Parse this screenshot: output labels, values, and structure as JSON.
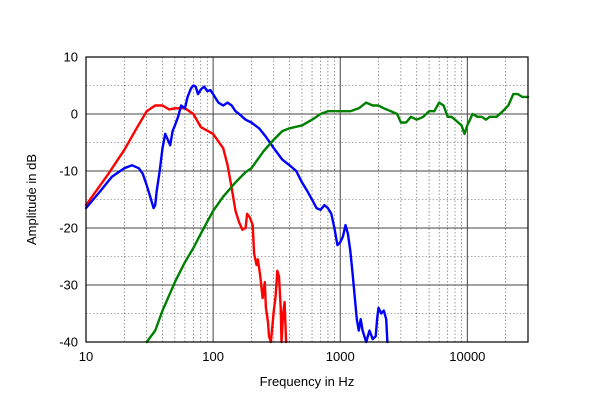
{
  "chart_data": {
    "type": "line",
    "title": "",
    "xlabel": "Frequency in Hz",
    "ylabel": "Amplitude in dB",
    "x_scale": "log",
    "xlim": [
      10,
      30000
    ],
    "ylim": [
      -40,
      10
    ],
    "x_ticks": [
      10,
      100,
      1000,
      10000
    ],
    "x_tick_labels": [
      "10",
      "100",
      "1000",
      "10000"
    ],
    "y_ticks": [
      10,
      0,
      -10,
      -20,
      -30,
      -40
    ],
    "y_tick_labels": [
      "10",
      "0",
      "-10",
      "-20",
      "-30",
      "-40"
    ],
    "grid": true,
    "legend": "none",
    "series": [
      {
        "color": "#ff0000",
        "points": [
          [
            10,
            -16.0
          ],
          [
            15,
            -10.5
          ],
          [
            20,
            -6.3
          ],
          [
            25,
            -2.5
          ],
          [
            30,
            0.5
          ],
          [
            35,
            1.5
          ],
          [
            40,
            1.5
          ],
          [
            45,
            0.8
          ],
          [
            50,
            1.0
          ],
          [
            60,
            1.0
          ],
          [
            70,
            0
          ],
          [
            80,
            -2.3
          ],
          [
            100,
            -3.5
          ],
          [
            120,
            -6
          ],
          [
            130,
            -9
          ],
          [
            140,
            -13
          ],
          [
            150,
            -17
          ],
          [
            160,
            -19
          ],
          [
            170,
            -20.3
          ],
          [
            180,
            -20
          ],
          [
            185,
            -17.5
          ],
          [
            195,
            -18.2
          ],
          [
            205,
            -19.5
          ],
          [
            210,
            -24.5
          ],
          [
            220,
            -26.5
          ],
          [
            225,
            -25.5
          ],
          [
            235,
            -28.5
          ],
          [
            245,
            -32.3
          ],
          [
            255,
            -29.5
          ],
          [
            260,
            -34
          ],
          [
            270,
            -36.5
          ],
          [
            275,
            -39
          ],
          [
            285,
            -40
          ],
          [
            300,
            -34.5
          ],
          [
            310,
            -32
          ],
          [
            320,
            -27.5
          ],
          [
            330,
            -28.5
          ],
          [
            340,
            -34
          ],
          [
            345,
            -40
          ],
          [
            355,
            -35
          ],
          [
            365,
            -33
          ],
          [
            375,
            -40
          ]
        ]
      },
      {
        "color": "#0000ff",
        "points": [
          [
            10,
            -16.5
          ],
          [
            13,
            -13.5
          ],
          [
            16,
            -11
          ],
          [
            20,
            -9.5
          ],
          [
            23,
            -9
          ],
          [
            26,
            -9.5
          ],
          [
            28,
            -10.5
          ],
          [
            30,
            -12.5
          ],
          [
            32,
            -14.5
          ],
          [
            34,
            -16.5
          ],
          [
            35,
            -16
          ],
          [
            36,
            -13.5
          ],
          [
            38,
            -10
          ],
          [
            40,
            -6
          ],
          [
            42,
            -3.5
          ],
          [
            44,
            -4.5
          ],
          [
            46,
            -5.5
          ],
          [
            48,
            -3
          ],
          [
            50,
            -2
          ],
          [
            53,
            -0.5
          ],
          [
            56,
            1.5
          ],
          [
            60,
            1
          ],
          [
            63,
            3
          ],
          [
            67,
            4.5
          ],
          [
            70,
            5
          ],
          [
            73,
            4.8
          ],
          [
            76,
            3.5
          ],
          [
            80,
            4.3
          ],
          [
            85,
            4.8
          ],
          [
            90,
            4
          ],
          [
            95,
            4.2
          ],
          [
            100,
            3.5
          ],
          [
            110,
            2
          ],
          [
            120,
            1.5
          ],
          [
            130,
            2
          ],
          [
            140,
            1.5
          ],
          [
            150,
            0.5
          ],
          [
            160,
            0
          ],
          [
            180,
            -1
          ],
          [
            200,
            -1.5
          ],
          [
            230,
            -2.5
          ],
          [
            260,
            -4
          ],
          [
            300,
            -6
          ],
          [
            350,
            -8
          ],
          [
            400,
            -9
          ],
          [
            450,
            -10
          ],
          [
            500,
            -12
          ],
          [
            550,
            -13.5
          ],
          [
            600,
            -15
          ],
          [
            650,
            -16.5
          ],
          [
            700,
            -16.8
          ],
          [
            750,
            -16
          ],
          [
            800,
            -16.5
          ],
          [
            850,
            -17.5
          ],
          [
            900,
            -20
          ],
          [
            950,
            -23
          ],
          [
            1000,
            -22.5
          ],
          [
            1050,
            -21.5
          ],
          [
            1100,
            -19.5
          ],
          [
            1150,
            -21
          ],
          [
            1200,
            -24
          ],
          [
            1250,
            -28
          ],
          [
            1300,
            -32
          ],
          [
            1350,
            -36
          ],
          [
            1400,
            -38
          ],
          [
            1450,
            -36
          ],
          [
            1500,
            -38
          ],
          [
            1600,
            -40
          ],
          [
            1700,
            -38
          ],
          [
            1800,
            -39.5
          ],
          [
            1900,
            -39
          ],
          [
            1950,
            -36
          ],
          [
            2000,
            -34
          ],
          [
            2100,
            -35
          ],
          [
            2200,
            -34.5
          ],
          [
            2300,
            -36
          ],
          [
            2350,
            -40
          ]
        ]
      },
      {
        "color": "#008000",
        "points": [
          [
            30,
            -40
          ],
          [
            35,
            -38
          ],
          [
            40,
            -34.5
          ],
          [
            50,
            -29.5
          ],
          [
            60,
            -26
          ],
          [
            70,
            -23.5
          ],
          [
            80,
            -21
          ],
          [
            100,
            -17
          ],
          [
            120,
            -14.5
          ],
          [
            150,
            -12
          ],
          [
            180,
            -10.2
          ],
          [
            200,
            -9.5
          ],
          [
            250,
            -6.5
          ],
          [
            300,
            -4.5
          ],
          [
            350,
            -3
          ],
          [
            400,
            -2.5
          ],
          [
            500,
            -2
          ],
          [
            600,
            -1
          ],
          [
            700,
            0
          ],
          [
            800,
            0.5
          ],
          [
            900,
            0.5
          ],
          [
            1000,
            0.5
          ],
          [
            1200,
            0.5
          ],
          [
            1400,
            1
          ],
          [
            1600,
            2
          ],
          [
            1800,
            1.5
          ],
          [
            2000,
            1.5
          ],
          [
            2200,
            1
          ],
          [
            2500,
            0.5
          ],
          [
            2800,
            0
          ],
          [
            3000,
            -1.5
          ],
          [
            3300,
            -1.5
          ],
          [
            3600,
            -0.5
          ],
          [
            4000,
            -1
          ],
          [
            4500,
            -0.5
          ],
          [
            5000,
            0.5
          ],
          [
            5500,
            0.5
          ],
          [
            6000,
            2
          ],
          [
            6500,
            1.5
          ],
          [
            7000,
            -0.5
          ],
          [
            7500,
            -0.5
          ],
          [
            8000,
            -1
          ],
          [
            9000,
            -2
          ],
          [
            9500,
            -3.5
          ],
          [
            10000,
            -2
          ],
          [
            11000,
            0
          ],
          [
            12000,
            -0.5
          ],
          [
            13000,
            -0.5
          ],
          [
            14000,
            -1
          ],
          [
            15000,
            -0.5
          ],
          [
            17000,
            -0.5
          ],
          [
            19000,
            0.5
          ],
          [
            21000,
            1.5
          ],
          [
            23000,
            3.5
          ],
          [
            25000,
            3.5
          ],
          [
            27000,
            3
          ],
          [
            30000,
            3
          ]
        ]
      }
    ]
  }
}
